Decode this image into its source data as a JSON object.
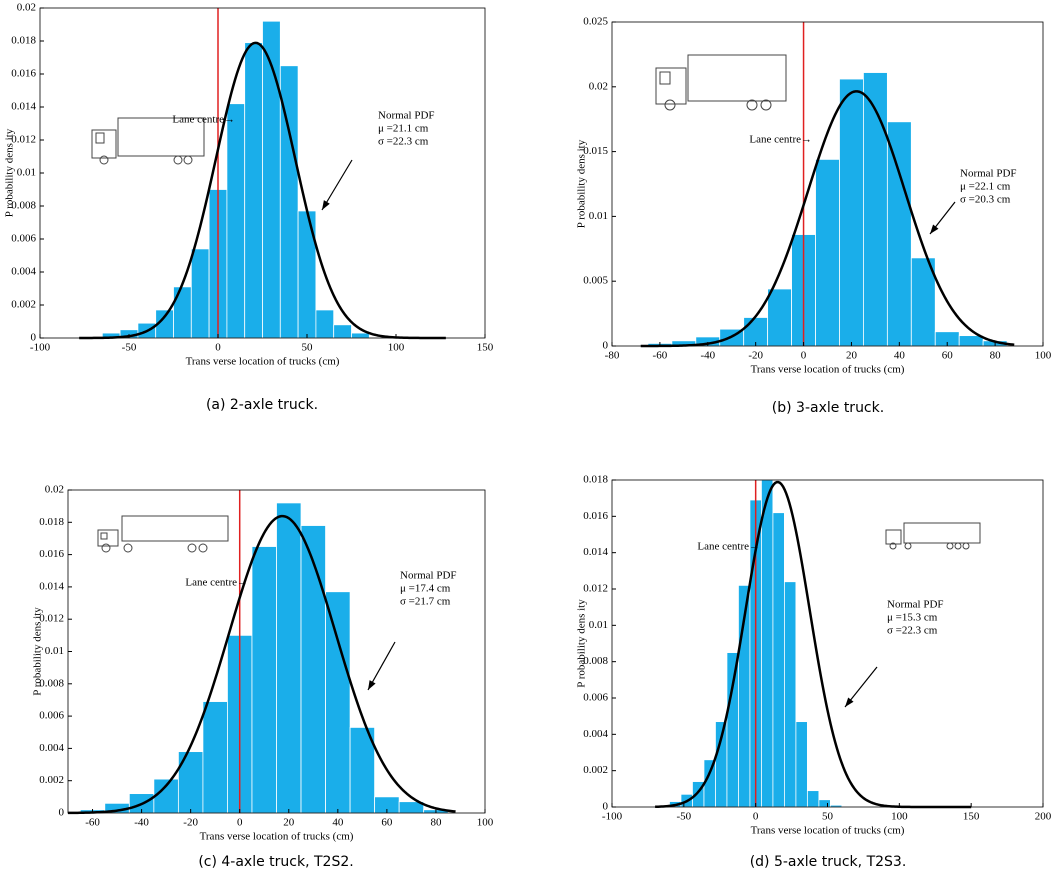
{
  "chart_data": [
    {
      "type": "histogram",
      "caption": "(a) 2-axle truck.",
      "xlabel": "Trans verse location of trucks (cm)",
      "ylabel": "P robability dens ity",
      "bins": [
        -65,
        -55,
        -45,
        -35,
        -25,
        -15,
        -5,
        5,
        15,
        25,
        35,
        45,
        55,
        65,
        75,
        85
      ],
      "values": [
        0.0003,
        0.0005,
        0.0009,
        0.0017,
        0.0031,
        0.0054,
        0.009,
        0.0142,
        0.0179,
        0.0192,
        0.0165,
        0.0077,
        0.0017,
        0.0008,
        0.0003
      ],
      "color": "#1aaeea",
      "xlim": [
        -100,
        150
      ],
      "xticks": [
        -100,
        -50,
        0,
        50,
        100,
        150
      ],
      "ylim": [
        0,
        0.02
      ],
      "yticks": [
        0,
        0.002,
        0.004,
        0.006,
        0.008,
        0.01,
        0.012,
        0.014,
        0.016,
        0.018,
        0.02
      ],
      "lane_centre_x": 0,
      "lane_color": "#e02020",
      "lane_label": "Lane centre→",
      "pdf": {
        "mean": 21.1,
        "sd": 22.3,
        "x_range": [
          -78,
          128
        ],
        "color": "#000000",
        "labels": [
          "Normal PDF",
          "μ =21.1 cm",
          "σ =22.3 cm"
        ]
      }
    },
    {
      "type": "histogram",
      "caption": "(b) 3-axle truck.",
      "xlabel": "Trans verse location of trucks (cm)",
      "ylabel": "P robability dens ity",
      "bins": [
        -65,
        -55,
        -45,
        -35,
        -25,
        -15,
        -5,
        5,
        15,
        25,
        35,
        45,
        55,
        65,
        75,
        85
      ],
      "values": [
        0.0002,
        0.0004,
        0.0007,
        0.0013,
        0.0022,
        0.0044,
        0.0086,
        0.0144,
        0.0206,
        0.0211,
        0.0173,
        0.0068,
        0.0011,
        0.0008,
        0.0004
      ],
      "color": "#1aaeea",
      "xlim": [
        -80,
        100
      ],
      "xticks": [
        -80,
        -60,
        -40,
        -20,
        0,
        20,
        40,
        60,
        80,
        100
      ],
      "ylim": [
        0,
        0.025
      ],
      "yticks": [
        0,
        0.005,
        0.01,
        0.015,
        0.02,
        0.025
      ],
      "lane_centre_x": 0,
      "lane_color": "#e02020",
      "lane_label": "Lane centre→",
      "pdf": {
        "mean": 22.1,
        "sd": 20.3,
        "x_range": [
          -68,
          88
        ],
        "color": "#000000",
        "labels": [
          "Normal PDF",
          "μ =22.1 cm",
          "σ =20.3 cm"
        ]
      }
    },
    {
      "type": "histogram",
      "caption": "(c) 4-axle truck, T2S2.",
      "xlabel": "Trans verse location of trucks (cm)",
      "ylabel": "P robability dens ity",
      "bins": [
        -65,
        -55,
        -45,
        -35,
        -25,
        -15,
        -5,
        5,
        15,
        25,
        35,
        45,
        55,
        65,
        75,
        85
      ],
      "values": [
        0.0002,
        0.0006,
        0.0012,
        0.0021,
        0.0038,
        0.0069,
        0.011,
        0.0165,
        0.0192,
        0.0178,
        0.0137,
        0.0053,
        0.001,
        0.0007,
        0.0002
      ],
      "color": "#1aaeea",
      "xlim": [
        -70,
        100
      ],
      "xticks": [
        -60,
        -40,
        -20,
        0,
        20,
        40,
        60,
        80,
        100
      ],
      "ylim": [
        0,
        0.02
      ],
      "yticks": [
        0,
        0.002,
        0.004,
        0.006,
        0.008,
        0.01,
        0.012,
        0.014,
        0.016,
        0.018,
        0.02
      ],
      "lane_centre_x": 0,
      "lane_color": "#e02020",
      "lane_label": "Lane centre→",
      "pdf": {
        "mean": 17.4,
        "sd": 21.7,
        "x_range": [
          -70,
          88
        ],
        "color": "#000000",
        "labels": [
          "Normal PDF",
          "μ =17.4 cm",
          "σ =21.7 cm"
        ]
      }
    },
    {
      "type": "histogram",
      "caption": "(d) 5-axle truck, T2S3.",
      "xlabel": "Trans verse location of trucks (cm)",
      "ylabel": "P robability dens ity",
      "bins": [
        -60,
        -52,
        -44,
        -36,
        -28,
        -20,
        -12,
        -4,
        4,
        12,
        20,
        28,
        36,
        44,
        52,
        60
      ],
      "values": [
        0.0003,
        0.0007,
        0.0014,
        0.0026,
        0.0047,
        0.0085,
        0.0122,
        0.0169,
        0.018,
        0.0162,
        0.0124,
        0.0047,
        0.0009,
        0.0004,
        0.0001
      ],
      "color": "#1aaeea",
      "xlim": [
        -100,
        200
      ],
      "xticks": [
        -100,
        -50,
        0,
        50,
        100,
        150,
        200
      ],
      "ylim": [
        0,
        0.018
      ],
      "yticks": [
        0,
        0.002,
        0.004,
        0.006,
        0.008,
        0.01,
        0.012,
        0.014,
        0.016,
        0.018
      ],
      "lane_centre_x": 0,
      "lane_color": "#e02020",
      "lane_label": "Lane centre→",
      "pdf": {
        "mean": 15.3,
        "sd": 22.3,
        "x_range": [
          -70,
          150
        ],
        "color": "#000000",
        "labels": [
          "Normal PDF",
          "μ =15.3 cm",
          "σ =22.3 cm"
        ]
      }
    }
  ]
}
